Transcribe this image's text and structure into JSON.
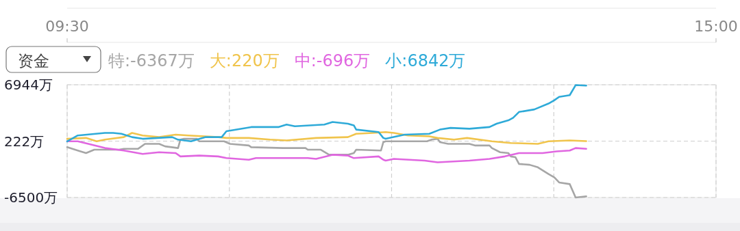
{
  "chart_data": {
    "type": "line",
    "annotations": [
      "资金"
    ],
    "xlim": [
      9.5,
      15
    ],
    "xticks": [
      {
        "value": 9.5,
        "label": "09:30"
      },
      {
        "value": 10.875,
        "label": null
      },
      {
        "value": 12.25,
        "label": null
      },
      {
        "value": 13.625,
        "label": null
      },
      {
        "value": 15,
        "label": "15:00"
      }
    ],
    "ylim": [
      -6500,
      6944
    ],
    "yticks": [
      {
        "value": 6944,
        "label": "6944万"
      },
      {
        "value": 222,
        "label": "222万"
      },
      {
        "value": -6500,
        "label": "-6500万"
      }
    ],
    "grid": true,
    "legend": "top left",
    "series": [
      {
        "name": "特:-6367万",
        "color": "#a6a6a6",
        "x": [
          9.5,
          9.59,
          9.66,
          9.73,
          9.94,
          9.98,
          10.1,
          10.16,
          10.28,
          10.33,
          10.44,
          10.46,
          10.49,
          10.6,
          10.62,
          10.83,
          10.88,
          11.04,
          11.06,
          11.33,
          11.52,
          11.54,
          11.65,
          11.72,
          11.88,
          11.93,
          11.95,
          12.16,
          12.18,
          12.2,
          12.55,
          12.59,
          12.64,
          12.66,
          12.73,
          12.91,
          12.96,
          13.08,
          13.1,
          13.17,
          13.24,
          13.26,
          13.3,
          13.33,
          13.42,
          13.49,
          13.58,
          13.63,
          13.67,
          13.76,
          13.81,
          13.9
        ],
        "values": [
          -500,
          -900,
          -1200,
          -800,
          -800,
          -700,
          -700,
          -100,
          -100,
          -400,
          -600,
          400,
          500,
          500,
          200,
          200,
          -100,
          -300,
          -500,
          -600,
          -600,
          -800,
          -800,
          -1400,
          -1400,
          -1200,
          -800,
          -900,
          100,
          200,
          200,
          400,
          500,
          100,
          -100,
          -100,
          -300,
          -300,
          -600,
          -1100,
          -1200,
          -1600,
          -1700,
          -2500,
          -2600,
          -2900,
          -3700,
          -4100,
          -4700,
          -4900,
          -6500,
          -6367
        ]
      },
      {
        "name": "大:220万",
        "color": "#f0c44c",
        "x": [
          9.5,
          9.66,
          9.75,
          9.82,
          9.98,
          10.05,
          10.14,
          10.28,
          10.42,
          10.53,
          10.78,
          10.85,
          11.04,
          11.22,
          11.36,
          11.61,
          11.88,
          11.95,
          12.09,
          12.2,
          12.27,
          12.39,
          12.57,
          12.64,
          12.78,
          12.89,
          13.1,
          13.26,
          13.49,
          13.58,
          13.76,
          13.9
        ],
        "values": [
          500,
          600,
          200,
          400,
          700,
          1200,
          900,
          700,
          1000,
          900,
          700,
          600,
          600,
          400,
          300,
          600,
          700,
          1100,
          1200,
          1300,
          1200,
          900,
          800,
          600,
          400,
          600,
          200,
          0,
          -100,
          200,
          300,
          220
        ]
      },
      {
        "name": "中:-696万",
        "color": "#e066e0",
        "x": [
          9.5,
          9.59,
          9.68,
          9.82,
          9.98,
          10.14,
          10.28,
          10.42,
          10.46,
          10.62,
          10.78,
          10.85,
          11.04,
          11.1,
          11.54,
          11.61,
          11.75,
          11.88,
          11.93,
          12.14,
          12.18,
          12.2,
          12.27,
          12.53,
          12.64,
          12.91,
          13.08,
          13.21,
          13.33,
          13.53,
          13.65,
          13.76,
          13.81,
          13.9
        ],
        "values": [
          200,
          200,
          -100,
          -600,
          -900,
          -1300,
          -1100,
          -1200,
          -1600,
          -1500,
          -1600,
          -1800,
          -2000,
          -1800,
          -1800,
          -1900,
          -1400,
          -1500,
          -1800,
          -1600,
          -2000,
          -2100,
          -1900,
          -2100,
          -2300,
          -2100,
          -1900,
          -1600,
          -1200,
          -1200,
          -1000,
          -900,
          -600,
          -696
        ]
      },
      {
        "name": "小:6842万",
        "color": "#2eaad8",
        "x": [
          9.5,
          9.59,
          9.82,
          9.89,
          9.96,
          10.05,
          10.14,
          10.39,
          10.44,
          10.55,
          10.67,
          10.81,
          10.85,
          11.06,
          11.29,
          11.36,
          11.43,
          11.68,
          11.75,
          11.88,
          11.93,
          11.95,
          12.14,
          12.18,
          12.2,
          12.36,
          12.57,
          12.66,
          12.75,
          12.91,
          13.08,
          13.14,
          13.24,
          13.28,
          13.33,
          13.46,
          13.58,
          13.63,
          13.67,
          13.76,
          13.81,
          13.9
        ],
        "values": [
          200,
          900,
          1200,
          1200,
          1100,
          700,
          500,
          700,
          400,
          200,
          700,
          700,
          1400,
          1900,
          1900,
          2200,
          2000,
          2200,
          2500,
          2300,
          2100,
          1600,
          1300,
          600,
          500,
          1000,
          1100,
          1600,
          1800,
          1700,
          1900,
          2300,
          2700,
          3000,
          3700,
          4000,
          4700,
          5100,
          5500,
          5700,
          6900,
          6842
        ]
      }
    ]
  }
}
